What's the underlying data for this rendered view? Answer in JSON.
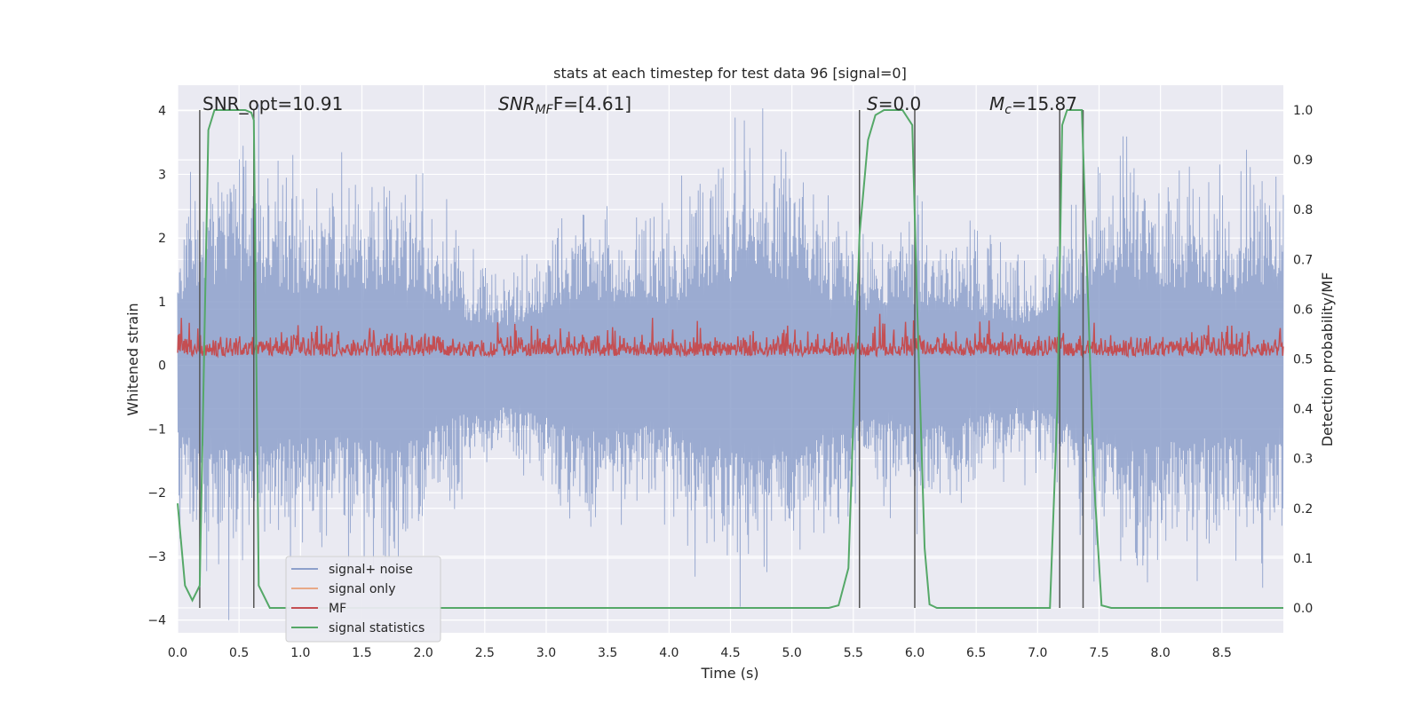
{
  "chart_data": {
    "type": "line",
    "title": "stats at each timestep for test data 96 [signal=0]",
    "xlabel": "Time (s)",
    "ylabel": "Whitened strain",
    "y2label": "Detection probability/MF",
    "xlim": [
      0,
      9
    ],
    "ylim": [
      -4.2,
      4.4
    ],
    "y2lim": [
      -0.05,
      1.05
    ],
    "xticks": [
      "0.0",
      "0.5",
      "1.0",
      "1.5",
      "2.0",
      "2.5",
      "3.0",
      "3.5",
      "4.0",
      "4.5",
      "5.0",
      "5.5",
      "6.0",
      "6.5",
      "7.0",
      "7.5",
      "8.0",
      "8.5"
    ],
    "yticks": [
      "4",
      "3",
      "2",
      "1",
      "0",
      "−1",
      "−2",
      "−3",
      "−4"
    ],
    "y2ticks": [
      "1.0",
      "0.9",
      "0.8",
      "0.7",
      "0.6",
      "0.5",
      "0.4",
      "0.3",
      "0.2",
      "0.1",
      "0.0"
    ],
    "grid": true,
    "legend_position": "lower-left",
    "annotations": {
      "snr_opt": "SNR_opt=10.91",
      "snr_mf_base": "SNR",
      "snr_mf_sub": "MF",
      "snr_mf_rest": "F=[4.61]",
      "s_base": "S",
      "s_rest": "=0.0",
      "mc_base": "M",
      "mc_sub": "c",
      "mc_rest": "=15.87"
    },
    "series": [
      {
        "name": "signal+ noise",
        "axis": "left",
        "color": "#8da0cb",
        "description_values": "whitened noise, peaks roughly 2-3.5 with occasional peaks near 4, troughs roughly -2 to -3.8"
      },
      {
        "name": "signal only",
        "axis": "left",
        "color": "#e8a987",
        "values": []
      },
      {
        "name": "MF",
        "axis": "right",
        "color": "#c44e52",
        "range": [
          0.5,
          0.6
        ]
      },
      {
        "name": "signal statistics",
        "axis": "right",
        "color": "#55a868",
        "x": [
          0.0,
          0.06,
          0.12,
          0.18,
          0.25,
          0.3,
          0.36,
          0.45,
          0.55,
          0.6,
          0.62,
          0.66,
          0.75,
          5.3,
          5.38,
          5.46,
          5.55,
          5.62,
          5.68,
          5.75,
          5.9,
          5.98,
          6.02,
          6.08,
          6.12,
          6.18,
          6.25,
          7.1,
          7.16,
          7.2,
          7.24,
          7.3,
          7.36,
          7.42,
          7.46,
          7.52,
          7.6,
          9.0
        ],
        "values": [
          0.21,
          0.045,
          0.015,
          0.045,
          0.96,
          1.0,
          1.0,
          1.0,
          1.0,
          0.995,
          0.98,
          0.045,
          0.0,
          0.0,
          0.005,
          0.08,
          0.75,
          0.94,
          0.99,
          1.0,
          1.0,
          0.97,
          0.6,
          0.12,
          0.007,
          0.0,
          0.0,
          0.0,
          0.4,
          0.97,
          1.0,
          1.0,
          1.0,
          0.55,
          0.25,
          0.005,
          0.0,
          0.0
        ]
      }
    ],
    "markers_x": [
      0.18,
      0.62,
      5.55,
      6.0,
      7.18,
      7.37
    ],
    "legend": [
      "signal+ noise",
      "signal only",
      "MF",
      "signal statistics"
    ]
  }
}
